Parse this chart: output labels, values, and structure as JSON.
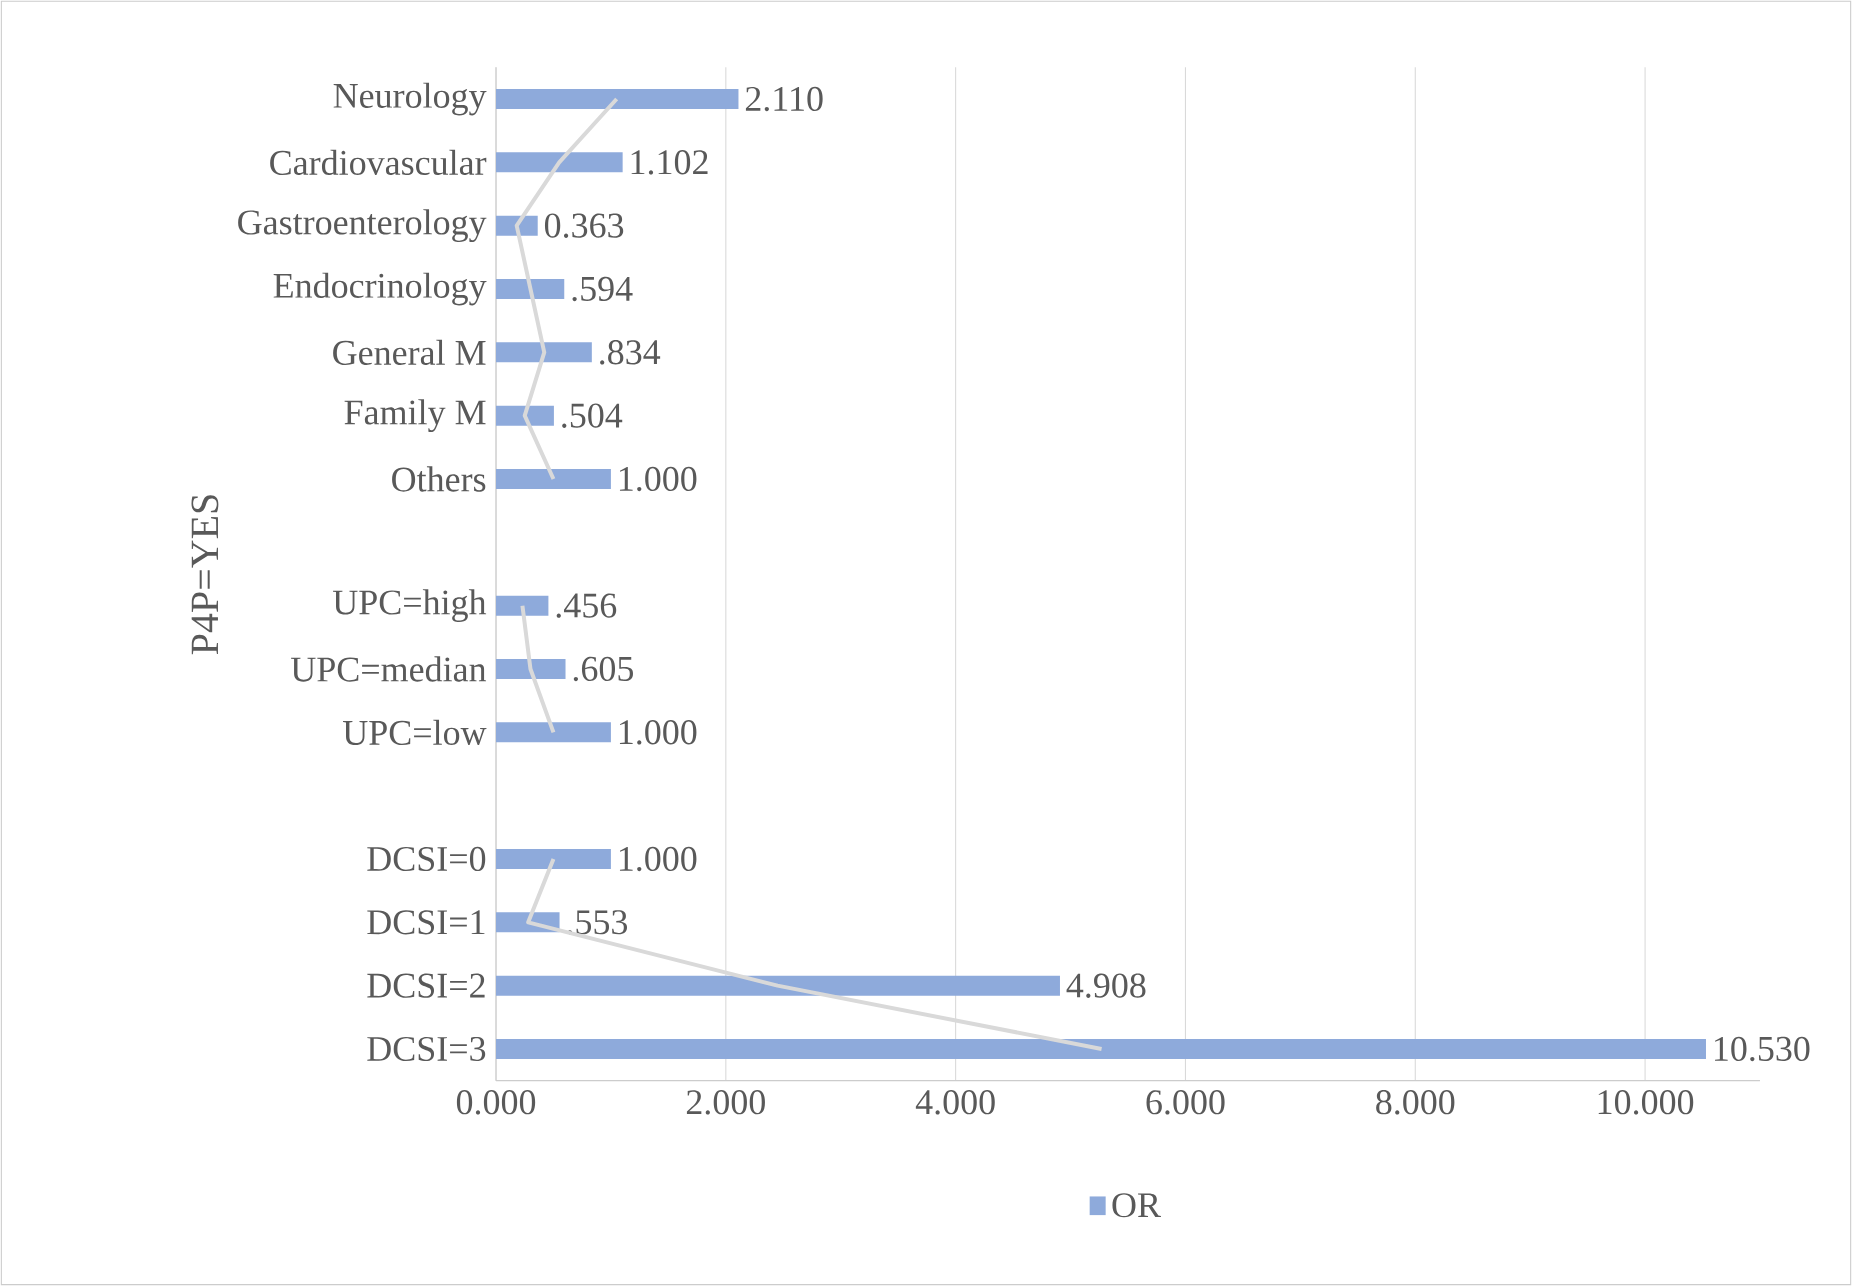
{
  "chart_data": {
    "type": "bar",
    "orientation": "horizontal",
    "ylabel": "P4P=YES",
    "categories": [
      "Neurology",
      "Cardiovascular",
      "Gastroenterology",
      "Endocrinology",
      "General M",
      "Family M",
      "Others",
      null,
      "UPC=high",
      "UPC=median",
      "UPC=low",
      null,
      "DCSI=0",
      "DCSI=1",
      "DCSI=2",
      "DCSI=3"
    ],
    "series": [
      {
        "name": "OR",
        "color": "#8eaadb",
        "values": [
          2.11,
          1.102,
          0.363,
          0.594,
          0.834,
          0.504,
          1.0,
          null,
          0.456,
          0.605,
          1.0,
          null,
          1.0,
          0.553,
          4.908,
          10.53
        ],
        "value_labels": [
          "2.110",
          "1.102",
          "0.363",
          ".594",
          ".834",
          ".504",
          "1.000",
          null,
          ".456",
          ".605",
          "1.000",
          null,
          "1.000",
          ".553",
          "4.908",
          "10.530"
        ]
      },
      {
        "type": "line",
        "color": "#d9d9d9",
        "values": [
          1.05,
          0.55,
          0.18,
          0.3,
          0.42,
          0.25,
          0.5,
          null,
          0.23,
          0.3,
          0.5,
          null,
          0.5,
          0.28,
          2.45,
          5.27
        ]
      }
    ],
    "xlim": [
      0,
      11
    ],
    "xticks": [
      {
        "value": 0,
        "label": "0.000"
      },
      {
        "value": 2,
        "label": "2.000"
      },
      {
        "value": 4,
        "label": "4.000"
      },
      {
        "value": 6,
        "label": "6.000"
      },
      {
        "value": 8,
        "label": "8.000"
      },
      {
        "value": 10,
        "label": "10.000"
      }
    ],
    "grid": "x",
    "legend": "bottom"
  }
}
